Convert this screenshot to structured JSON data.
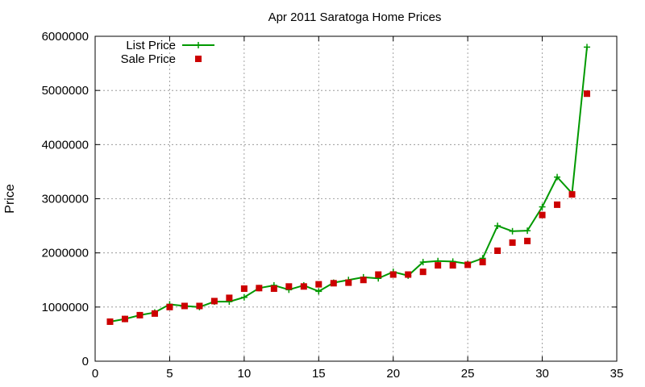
{
  "chart_data": {
    "type": "line",
    "title": "Apr 2011 Saratoga Home Prices",
    "xlabel": "",
    "ylabel": "Price",
    "xlim": [
      0,
      35
    ],
    "ylim": [
      0,
      6000000
    ],
    "xticks": [
      0,
      5,
      10,
      15,
      20,
      25,
      30,
      35
    ],
    "yticks": [
      0,
      1000000,
      2000000,
      3000000,
      4000000,
      5000000,
      6000000
    ],
    "xtick_labels": [
      "0",
      "5",
      "10",
      "15",
      "20",
      "25",
      "30",
      "35"
    ],
    "ytick_labels": [
      "0",
      "1000000",
      "2000000",
      "3000000",
      "4000000",
      "5000000",
      "6000000"
    ],
    "grid": true,
    "legend_position": "top-left",
    "x": [
      1,
      2,
      3,
      4,
      5,
      6,
      7,
      8,
      9,
      10,
      11,
      12,
      13,
      14,
      15,
      16,
      17,
      18,
      19,
      20,
      21,
      22,
      23,
      24,
      25,
      26,
      27,
      28,
      29,
      30,
      31,
      32,
      33
    ],
    "series": [
      {
        "name": "List Price",
        "kind": "line+cross",
        "color": "#009900",
        "values": [
          730000,
          780000,
          850000,
          900000,
          1050000,
          1020000,
          1000000,
          1100000,
          1100000,
          1180000,
          1350000,
          1400000,
          1320000,
          1400000,
          1290000,
          1450000,
          1500000,
          1550000,
          1530000,
          1650000,
          1580000,
          1830000,
          1850000,
          1840000,
          1800000,
          1900000,
          2500000,
          2400000,
          2410000,
          2850000,
          3400000,
          3100000,
          5800000
        ]
      },
      {
        "name": "Sale Price",
        "kind": "square",
        "color": "#cc0000",
        "values": [
          730000,
          780000,
          850000,
          880000,
          1000000,
          1020000,
          1020000,
          1110000,
          1170000,
          1340000,
          1350000,
          1340000,
          1380000,
          1380000,
          1420000,
          1440000,
          1450000,
          1500000,
          1600000,
          1600000,
          1600000,
          1650000,
          1770000,
          1770000,
          1780000,
          1830000,
          2040000,
          2190000,
          2220000,
          2700000,
          2890000,
          3080000,
          4940000
        ]
      }
    ]
  }
}
